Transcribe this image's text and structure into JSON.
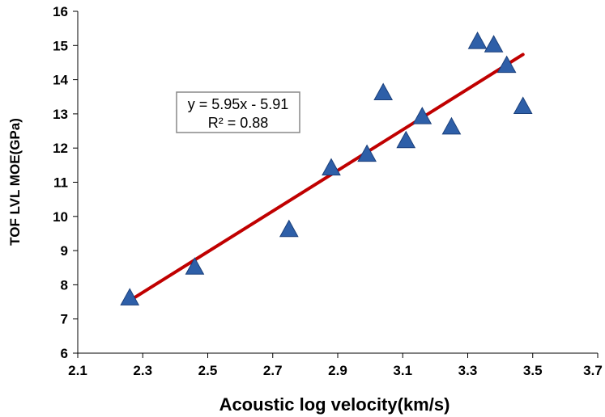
{
  "chart_data": {
    "type": "scatter",
    "title": "",
    "xlabel": "Acoustic log velocity(km/s)",
    "ylabel": "TOF LVL MOE(GPa)",
    "xlim": [
      2.1,
      3.7
    ],
    "ylim": [
      6,
      16
    ],
    "x_ticks": [
      "2.1",
      "2.3",
      "2.5",
      "2.7",
      "2.9",
      "3.1",
      "3.3",
      "3.5",
      "3.7"
    ],
    "y_ticks": [
      "6",
      "7",
      "8",
      "9",
      "10",
      "11",
      "12",
      "13",
      "14",
      "15",
      "16"
    ],
    "grid": false,
    "legend": "none",
    "series": [
      {
        "marker": "triangle",
        "color": "#2E5FA8",
        "points": [
          {
            "x": 2.26,
            "y": 7.6
          },
          {
            "x": 2.46,
            "y": 8.5
          },
          {
            "x": 2.75,
            "y": 9.6
          },
          {
            "x": 2.88,
            "y": 11.4
          },
          {
            "x": 2.99,
            "y": 11.8
          },
          {
            "x": 3.04,
            "y": 13.6
          },
          {
            "x": 3.11,
            "y": 12.2
          },
          {
            "x": 3.16,
            "y": 12.9
          },
          {
            "x": 3.25,
            "y": 12.6
          },
          {
            "x": 3.33,
            "y": 15.1
          },
          {
            "x": 3.38,
            "y": 15.0
          },
          {
            "x": 3.42,
            "y": 14.4
          },
          {
            "x": 3.47,
            "y": 13.2
          }
        ]
      }
    ],
    "trendline": {
      "type": "linear",
      "x_range": [
        2.26,
        3.47
      ],
      "slope": 5.95,
      "intercept": -5.91,
      "color": "#C00000",
      "equation_text": "y = 5.95x  - 5.91",
      "r2_text": "R² = 0.88"
    }
  }
}
